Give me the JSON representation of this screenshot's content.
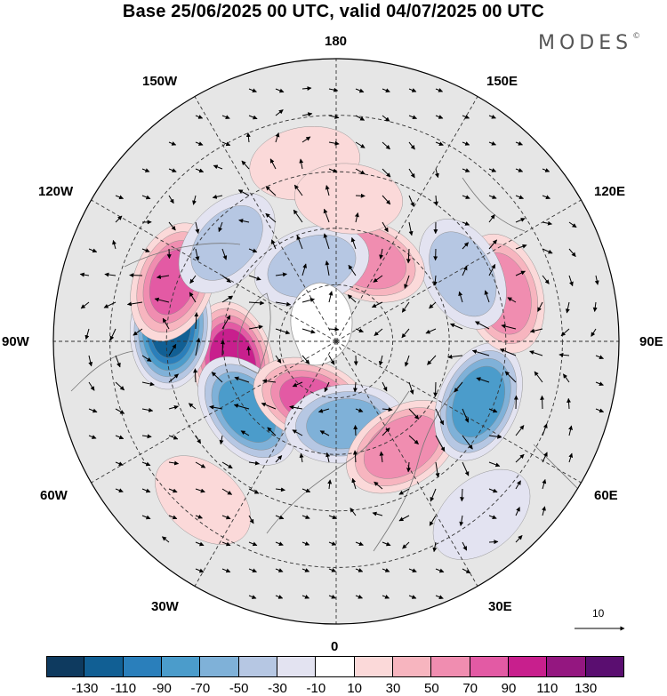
{
  "title": "Base 25/06/2025 00 UTC, valid 04/07/2025 00 UTC",
  "brand": {
    "name": "MODES",
    "mark": "©"
  },
  "longitude_labels": {
    "n180": "180",
    "e150": "150E",
    "e120": "120E",
    "e90": "90E",
    "e60": "60E",
    "e30": "30E",
    "s0": "0",
    "w30": "30W",
    "w60": "60W",
    "w90": "90W",
    "w120": "120W",
    "w150": "150W"
  },
  "colorbar": {
    "colors": [
      "#0e3a5f",
      "#115f94",
      "#2a7fbb",
      "#4b9ccb",
      "#7fb1d8",
      "#b6c7e3",
      "#e3e3f1",
      "#ffffff",
      "#fbd9d9",
      "#f7b5bf",
      "#f08db0",
      "#e35aa4",
      "#c81f8d",
      "#941780",
      "#5a0e70"
    ],
    "labels": [
      "-130",
      "-110",
      "-90",
      "-70",
      "-50",
      "-30",
      "-10",
      "10",
      "30",
      "50",
      "70",
      "90",
      "110",
      "130"
    ]
  },
  "vector_reference": {
    "label": "10"
  },
  "anomaly_centers": [
    {
      "lon": -78,
      "colat": 28,
      "value": 105
    },
    {
      "lon": -95,
      "colat": 44,
      "value": -115
    },
    {
      "lon": -110,
      "colat": 46,
      "value": 75
    },
    {
      "lon": -52,
      "colat": 30,
      "value": -80
    },
    {
      "lon": -22,
      "colat": 17,
      "value": 75
    },
    {
      "lon": 6,
      "colat": 22,
      "value": -60
    },
    {
      "lon": 32,
      "colat": 33,
      "value": 70
    },
    {
      "lon": 67,
      "colat": 41,
      "value": -85
    },
    {
      "lon": 106,
      "colat": 46,
      "value": 70
    },
    {
      "lon": 118,
      "colat": 38,
      "value": -45
    },
    {
      "lon": 160,
      "colat": 23,
      "value": 70
    },
    {
      "lon": -162,
      "colat": 21,
      "value": -45
    },
    {
      "lon": -132,
      "colat": 39,
      "value": -40
    },
    {
      "lon": -170,
      "colat": 48,
      "value": 25
    },
    {
      "lon": 175,
      "colat": 38,
      "value": 20
    },
    {
      "lon": 40,
      "colat": 60,
      "value": -25
    },
    {
      "lon": -40,
      "colat": 55,
      "value": 22
    }
  ]
}
